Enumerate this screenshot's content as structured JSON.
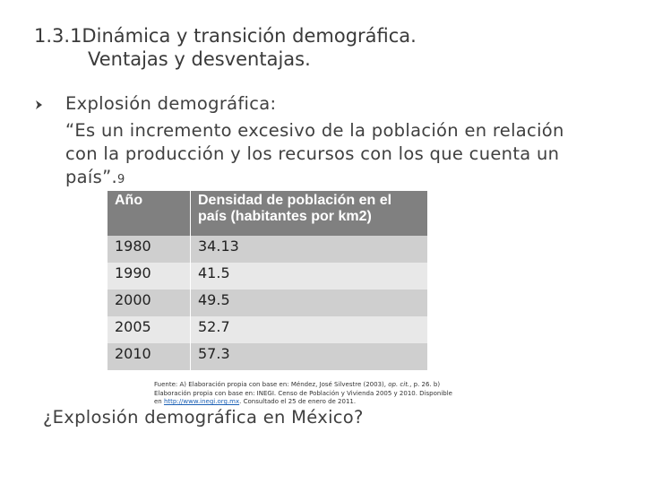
{
  "header": {
    "title": [
      "1.3.1Dinámica y transición demográfica.",
      "Ventajas y desventajas."
    ]
  },
  "bullet": {
    "lines": [
      "Explosión demográfica:",
      "“Es un incremento excesivo de la población en relación",
      "con la producción y los recursos con los que cuenta un",
      "país”."
    ],
    "note": "9"
  },
  "table": {
    "header": [
      "Año",
      "Densidad de población en el país (habitantes por km2)"
    ],
    "rows": [
      [
        "1980",
        "34.13"
      ],
      [
        "1990",
        "41.5"
      ],
      [
        "2000",
        "49.5"
      ],
      [
        "2005",
        "52.7"
      ],
      [
        "2010",
        "57.3"
      ]
    ]
  },
  "source": {
    "lines": [
      [
        "Fuente: A) Elaboración propia con base en: Méndez, José Silvestre (2003), ",
        "op. cit.",
        ", p. 26. b)"
      ],
      [
        "Elaboración propia con base en: INEGI. Censo de Población y Vivienda 2005 y 2010. Disponible"
      ],
      [
        "en ",
        "http://www.inegi.org.mx",
        ". Consultado el 25 de enero de 2011."
      ]
    ]
  },
  "question": "¿Explosión demográfica en México?"
}
